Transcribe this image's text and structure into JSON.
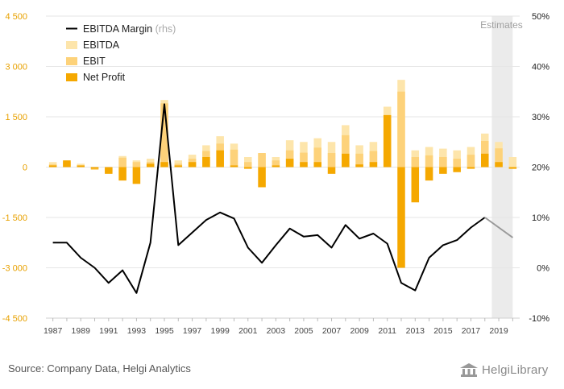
{
  "source_text": "Source: Company Data, Helgi Analytics",
  "logo_text": "HelgiLibrary",
  "colors": {
    "ebitda": "#fde5ab",
    "ebit": "#fdd27a",
    "net_profit": "#f5a800",
    "margin_line": "#000000",
    "margin_estimate": "#999999",
    "estimate_shade": "#ebebeb",
    "left_axis": "#e8a100",
    "right_axis": "#222222",
    "year_axis": "#444444"
  },
  "chart_data": {
    "type": "bar",
    "title": "",
    "xlabel": "",
    "ylabel": "",
    "legend_position": "top-left",
    "estimates_label": "Estimates",
    "estimate_from": 2019,
    "x": [
      1987,
      1988,
      1989,
      1990,
      1991,
      1992,
      1993,
      1994,
      1995,
      1996,
      1997,
      1998,
      1999,
      2000,
      2001,
      2002,
      2003,
      2004,
      2005,
      2006,
      2007,
      2008,
      2009,
      2010,
      2011,
      2012,
      2013,
      2014,
      2015,
      2016,
      2017,
      2018,
      2019,
      2020
    ],
    "x_tick_labels": [
      "1987",
      "1989",
      "1991",
      "1993",
      "1995",
      "1997",
      "1999",
      "2001",
      "2003",
      "2005",
      "2007",
      "2009",
      "2011",
      "2013",
      "2015",
      "2017",
      "2019"
    ],
    "y_left": {
      "ticks": [
        4500,
        3000,
        1500,
        0,
        -1500,
        -3000,
        -4500
      ],
      "tick_labels": [
        "4 500",
        "3 000",
        "1 500",
        "0",
        "-1 500",
        "-3 000",
        "-4 500"
      ],
      "range": [
        -4500,
        4500
      ]
    },
    "y_right": {
      "ticks": [
        50,
        40,
        30,
        20,
        10,
        0,
        -10
      ],
      "tick_labels": [
        "50%",
        "40%",
        "30%",
        "20%",
        "10%",
        "0%",
        "-10%"
      ],
      "range": [
        -10,
        50
      ]
    },
    "series": [
      {
        "name": "EBITDA",
        "axis": "left",
        "values": [
          150,
          200,
          100,
          -50,
          -100,
          330,
          200,
          250,
          2000,
          200,
          370,
          650,
          920,
          700,
          300,
          400,
          300,
          800,
          750,
          860,
          750,
          1250,
          650,
          750,
          1800,
          2600,
          500,
          600,
          550,
          500,
          600,
          1000,
          750,
          300
        ]
      },
      {
        "name": "EBIT",
        "axis": "left",
        "values": [
          80,
          150,
          50,
          -80,
          -150,
          280,
          150,
          150,
          1900,
          100,
          250,
          480,
          700,
          520,
          150,
          420,
          200,
          500,
          430,
          580,
          420,
          950,
          400,
          480,
          1550,
          2250,
          300,
          350,
          300,
          250,
          370,
          780,
          560,
          -50
        ]
      },
      {
        "name": "Net Profit",
        "axis": "left",
        "values": [
          50,
          200,
          50,
          -50,
          -200,
          -400,
          -500,
          100,
          150,
          50,
          150,
          300,
          500,
          50,
          -50,
          -600,
          50,
          250,
          150,
          150,
          -200,
          400,
          80,
          150,
          1550,
          -3000,
          -1050,
          -400,
          -200,
          -150,
          -50,
          400,
          150,
          -50
        ]
      },
      {
        "name": "EBITDA Margin",
        "name_suffix": "(rhs)",
        "axis": "right",
        "type": "line",
        "values": [
          5,
          5,
          2,
          0,
          -3,
          -0.5,
          -5,
          5,
          32.5,
          4.5,
          7,
          9.5,
          11,
          9.8,
          4,
          1,
          4.5,
          7.8,
          6.2,
          6.5,
          4,
          8.5,
          5.8,
          6.8,
          4.8,
          -3,
          -4.5,
          2,
          4.5,
          5.5,
          8,
          10,
          8,
          6
        ]
      }
    ]
  }
}
